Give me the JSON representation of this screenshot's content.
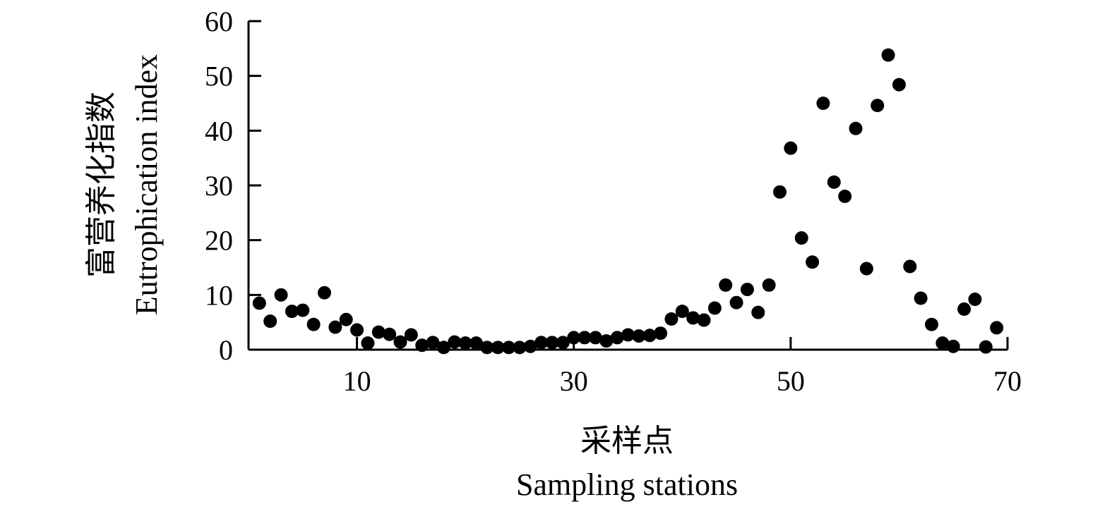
{
  "chart_data": {
    "type": "scatter",
    "xlabel_cn": "采样点",
    "xlabel_en": "Sampling stations",
    "ylabel_cn": "富营养化指数",
    "ylabel_en": "Eutrophication index",
    "xlim": [
      0,
      70
    ],
    "ylim": [
      0,
      60
    ],
    "xticks": [
      10,
      30,
      50,
      70
    ],
    "yticks": [
      0,
      10,
      20,
      30,
      40,
      50,
      60
    ],
    "grid": false,
    "series": [
      {
        "x": [
          1,
          2,
          3,
          4,
          5,
          6,
          7,
          8,
          9,
          10,
          11,
          12,
          13,
          14,
          15,
          16,
          17,
          18,
          19,
          20,
          21,
          22,
          23,
          24,
          25,
          26,
          27,
          28,
          29,
          30,
          31,
          32,
          33,
          34,
          35,
          36,
          37,
          38,
          39,
          40,
          41,
          42,
          43,
          44,
          45,
          46,
          47,
          48,
          49,
          50,
          51,
          52,
          53,
          54,
          55,
          56,
          57,
          58,
          59,
          60,
          61,
          62,
          63,
          64,
          65,
          66,
          67,
          68,
          69
        ],
        "y": [
          8.5,
          5.2,
          10.0,
          7.0,
          7.2,
          4.6,
          10.4,
          4.1,
          5.5,
          3.6,
          1.2,
          3.2,
          2.8,
          1.4,
          2.7,
          0.8,
          1.3,
          0.4,
          1.4,
          1.2,
          1.2,
          0.4,
          0.4,
          0.4,
          0.4,
          0.6,
          1.3,
          1.3,
          1.3,
          2.2,
          2.2,
          2.2,
          1.6,
          2.2,
          2.7,
          2.5,
          2.6,
          3.0,
          5.6,
          7.0,
          5.8,
          5.4,
          7.6,
          11.8,
          8.6,
          11.0,
          6.8,
          11.8,
          28.8,
          36.8,
          20.4,
          16.0,
          45.0,
          30.6,
          28.0,
          40.4,
          14.8,
          44.6,
          53.8,
          48.4,
          15.2,
          9.4,
          4.6,
          1.2,
          0.6,
          7.4,
          9.2,
          0.5,
          4.0
        ]
      }
    ]
  }
}
